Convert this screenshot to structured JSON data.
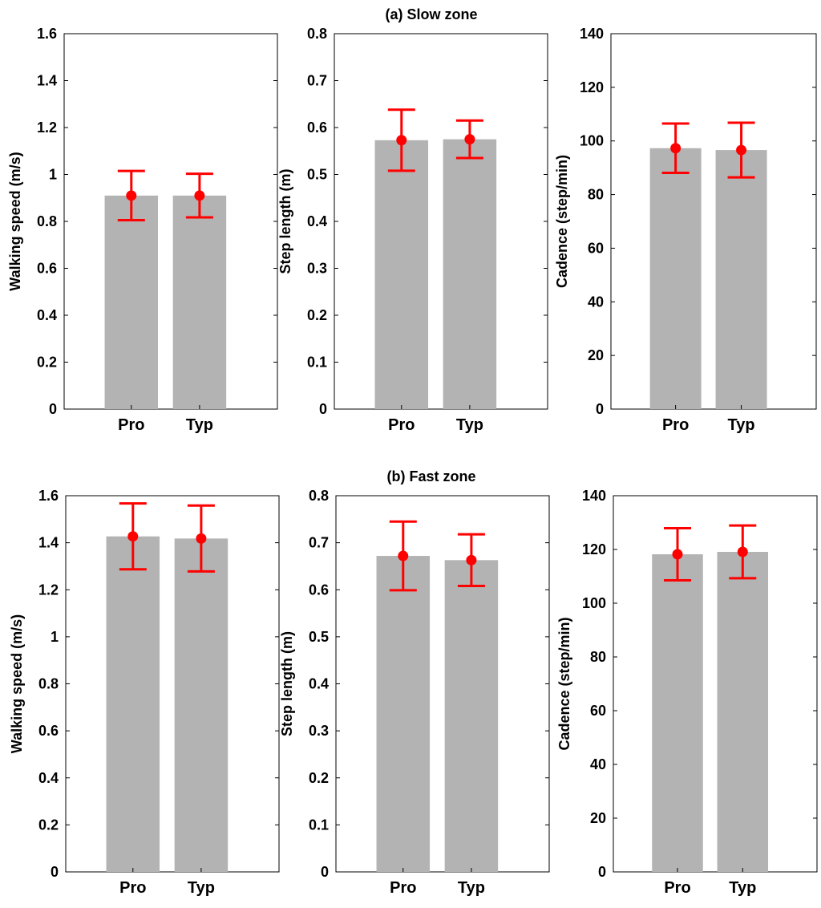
{
  "figure": {
    "zone_titles": [
      "(a) Slow zone",
      "(b) Fast zone"
    ],
    "colors": {
      "bar": "#b3b3b3",
      "error": "#ff0000",
      "axis": "#000000",
      "background": "#ffffff"
    }
  },
  "chart_data": [
    {
      "id": "slow-speed",
      "zone": "(a) Slow zone",
      "type": "bar",
      "categories": [
        "Pro",
        "Typ"
      ],
      "values": [
        0.91,
        0.91
      ],
      "errors": [
        0.105,
        0.093
      ],
      "ylabel": "Walking speed (m/s)",
      "xlabel": "",
      "ylim": [
        0,
        1.6
      ],
      "yticks": [
        0,
        0.2,
        0.4,
        0.6,
        0.8,
        1,
        1.2,
        1.4,
        1.6
      ],
      "ytick_labels": [
        "0",
        "0.2",
        "0.4",
        "0.6",
        "0.8",
        "1",
        "1.2",
        "1.4",
        "1.6"
      ]
    },
    {
      "id": "slow-step",
      "zone": "(a) Slow zone",
      "type": "bar",
      "categories": [
        "Pro",
        "Typ"
      ],
      "values": [
        0.573,
        0.575
      ],
      "errors": [
        0.065,
        0.04
      ],
      "ylabel": "Step length (m)",
      "xlabel": "",
      "ylim": [
        0,
        0.8
      ],
      "yticks": [
        0,
        0.1,
        0.2,
        0.3,
        0.4,
        0.5,
        0.6,
        0.7,
        0.8
      ],
      "ytick_labels": [
        "0",
        "0.1",
        "0.2",
        "0.3",
        "0.4",
        "0.5",
        "0.6",
        "0.7",
        "0.8"
      ]
    },
    {
      "id": "slow-cadence",
      "zone": "(a) Slow zone",
      "type": "bar",
      "categories": [
        "Pro",
        "Typ"
      ],
      "values": [
        97.3,
        96.6
      ],
      "errors": [
        9.2,
        10.2
      ],
      "ylabel": "Cadence (step/min)",
      "xlabel": "",
      "ylim": [
        0,
        140
      ],
      "yticks": [
        0,
        20,
        40,
        60,
        80,
        100,
        120,
        140
      ],
      "ytick_labels": [
        "0",
        "20",
        "40",
        "60",
        "80",
        "100",
        "120",
        "140"
      ]
    },
    {
      "id": "fast-speed",
      "zone": "(b) Fast zone",
      "type": "bar",
      "categories": [
        "Pro",
        "Typ"
      ],
      "values": [
        1.427,
        1.418
      ],
      "errors": [
        0.14,
        0.14
      ],
      "ylabel": "Walking speed (m/s)",
      "xlabel": "",
      "ylim": [
        0,
        1.6
      ],
      "yticks": [
        0,
        0.2,
        0.4,
        0.6,
        0.8,
        1,
        1.2,
        1.4,
        1.6
      ],
      "ytick_labels": [
        "0",
        "0.2",
        "0.4",
        "0.6",
        "0.8",
        "1",
        "1.2",
        "1.4",
        "1.6"
      ]
    },
    {
      "id": "fast-step",
      "zone": "(b) Fast zone",
      "type": "bar",
      "categories": [
        "Pro",
        "Typ"
      ],
      "values": [
        0.672,
        0.663
      ],
      "errors": [
        0.073,
        0.055
      ],
      "ylabel": "Step length (m)",
      "xlabel": "",
      "ylim": [
        0,
        0.8
      ],
      "yticks": [
        0,
        0.1,
        0.2,
        0.3,
        0.4,
        0.5,
        0.6,
        0.7,
        0.8
      ],
      "ytick_labels": [
        "0",
        "0.1",
        "0.2",
        "0.3",
        "0.4",
        "0.5",
        "0.6",
        "0.7",
        "0.8"
      ]
    },
    {
      "id": "fast-cadence",
      "zone": "(b) Fast zone",
      "type": "bar",
      "categories": [
        "Pro",
        "Typ"
      ],
      "values": [
        118.2,
        119.1
      ],
      "errors": [
        9.7,
        9.8
      ],
      "ylabel": "Cadence (step/min)",
      "xlabel": "",
      "ylim": [
        0,
        140
      ],
      "yticks": [
        0,
        20,
        40,
        60,
        80,
        100,
        120,
        140
      ],
      "ytick_labels": [
        "0",
        "20",
        "40",
        "60",
        "80",
        "100",
        "120",
        "140"
      ]
    }
  ]
}
